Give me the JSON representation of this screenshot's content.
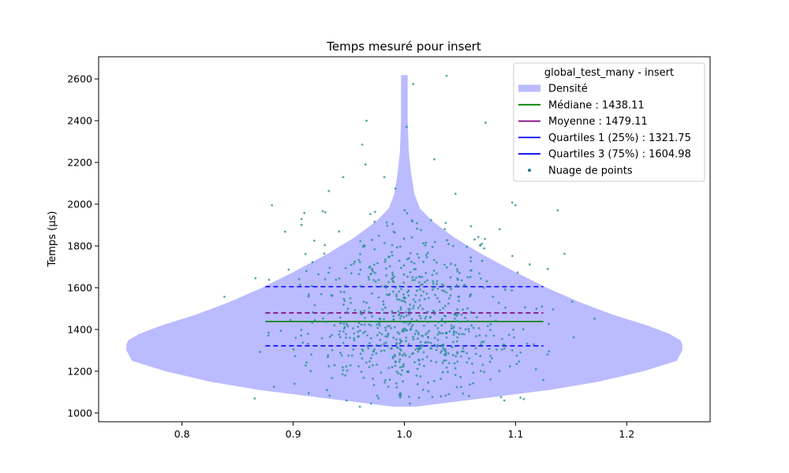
{
  "chart_data": {
    "type": "violin",
    "title": "Temps mesuré pour insert",
    "xlabel": "",
    "ylabel": "Temps (µs)",
    "xlim": [
      0.725,
      1.275
    ],
    "ylim": [
      958,
      2706
    ],
    "xticks": [
      0.8,
      0.9,
      1.0,
      1.1,
      1.2
    ],
    "xtick_labels": [
      "0.8",
      "0.9",
      "1.0",
      "1.1",
      "1.2"
    ],
    "yticks": [
      1000,
      1200,
      1400,
      1600,
      1800,
      2000,
      2200,
      2400,
      2600
    ],
    "ytick_labels": [
      "1000",
      "1200",
      "1400",
      "1600",
      "1800",
      "2000",
      "2200",
      "2400",
      "2600"
    ],
    "grid": false,
    "legend_position": "upper-right",
    "legend_title": "global_test_many - insert",
    "violin": {
      "name": "Densité",
      "color": "#bbbbff",
      "center": 1.0,
      "ymin": 1030,
      "ymax": 2618,
      "profile": [
        [
          1030,
          0.01
        ],
        [
          1050,
          0.04
        ],
        [
          1080,
          0.085
        ],
        [
          1110,
          0.13
        ],
        [
          1150,
          0.175
        ],
        [
          1200,
          0.215
        ],
        [
          1250,
          0.245
        ],
        [
          1300,
          0.25
        ],
        [
          1330,
          0.25
        ],
        [
          1350,
          0.248
        ],
        [
          1380,
          0.238
        ],
        [
          1420,
          0.218
        ],
        [
          1470,
          0.188
        ],
        [
          1530,
          0.158
        ],
        [
          1600,
          0.128
        ],
        [
          1680,
          0.098
        ],
        [
          1760,
          0.07
        ],
        [
          1840,
          0.045
        ],
        [
          1920,
          0.025
        ],
        [
          1980,
          0.014
        ],
        [
          2050,
          0.009
        ],
        [
          2150,
          0.006
        ],
        [
          2250,
          0.004
        ],
        [
          2400,
          0.003
        ],
        [
          2500,
          0.003
        ],
        [
          2618,
          0.003
        ]
      ]
    },
    "lines": [
      {
        "name": "Médiane : 1438.11",
        "value": 1438.11,
        "color": "#008000",
        "style": "solid",
        "x_from": 0.875,
        "x_to": 1.125
      },
      {
        "name": "Moyenne : 1479.11",
        "value": 1479.11,
        "color": "#800080",
        "style": "dashed",
        "x_from": 0.875,
        "x_to": 1.125
      },
      {
        "name": "Quartiles 1 (25%) : 1321.75",
        "value": 1321.75,
        "color": "#0000ff",
        "style": "dashed",
        "x_from": 0.875,
        "x_to": 1.125
      },
      {
        "name": "Quartiles 3 (75%) : 1604.98",
        "value": 1604.98,
        "color": "#0000ff",
        "style": "dashed",
        "x_from": 0.875,
        "x_to": 1.125
      }
    ],
    "scatter": {
      "name": "Nuage de points",
      "color": "#1f8c8c",
      "count": 760,
      "x_center": 1.0,
      "x_spread": 0.062,
      "median": 1438.11,
      "q1": 1321.75,
      "q3": 1604.98,
      "outliers": [
        [
          1.038,
          2615
        ],
        [
          1.008,
          2575
        ],
        [
          1.002,
          2370
        ],
        [
          0.966,
          2400
        ],
        [
          1.073,
          2390
        ],
        [
          1.027,
          2215
        ],
        [
          0.962,
          2285
        ],
        [
          0.965,
          2190
        ],
        [
          0.982,
          2130
        ],
        [
          0.945,
          2130
        ],
        [
          0.932,
          2063
        ],
        [
          0.992,
          2075
        ],
        [
          1.046,
          2050
        ],
        [
          1.097,
          2008
        ],
        [
          1.1,
          1995
        ],
        [
          1.138,
          1970
        ],
        [
          0.91,
          1958
        ],
        [
          0.866,
          1645
        ],
        [
          1.144,
          1762
        ],
        [
          1.151,
          1533
        ],
        [
          1.171,
          1452
        ],
        [
          1.13,
          1295
        ],
        [
          1.125,
          1158
        ],
        [
          0.97,
          1045
        ],
        [
          1.005,
          1045
        ],
        [
          0.96,
          1030
        ],
        [
          1.09,
          1060
        ],
        [
          0.948,
          1060
        ],
        [
          1.04,
          1090
        ],
        [
          0.87,
          1292
        ]
      ]
    },
    "legend_entries": [
      {
        "label": "Densité",
        "kind": "patch",
        "color": "#bbbbff"
      },
      {
        "label": "Médiane : 1438.11",
        "kind": "line",
        "color": "#008000"
      },
      {
        "label": "Moyenne : 1479.11",
        "kind": "line",
        "color": "#800080"
      },
      {
        "label": "Quartiles 1 (25%) : 1321.75",
        "kind": "line",
        "color": "#0000ff"
      },
      {
        "label": "Quartiles 3 (75%) : 1604.98",
        "kind": "line",
        "color": "#0000ff"
      },
      {
        "label": "Nuage de points",
        "kind": "dot",
        "color": "#1f7f8c"
      }
    ]
  }
}
